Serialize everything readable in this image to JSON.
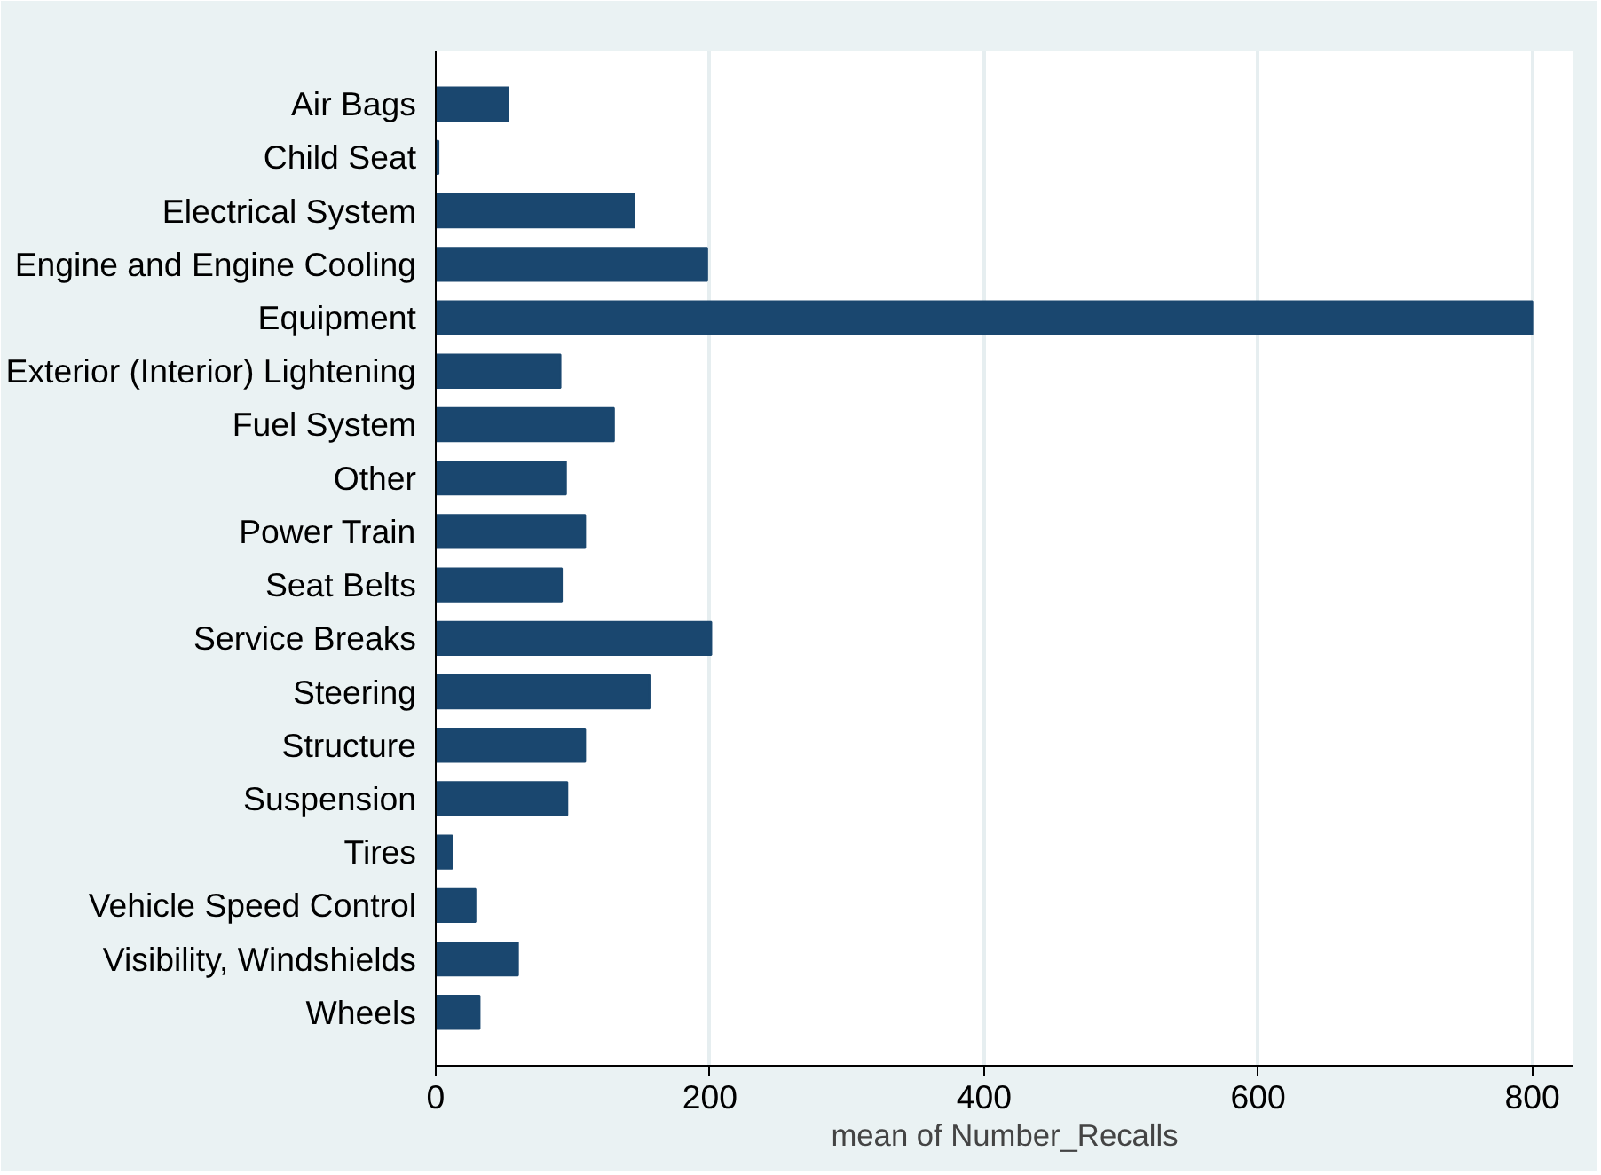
{
  "chart_data": {
    "type": "bar",
    "orientation": "horizontal",
    "xlabel": "mean of Number_Recalls",
    "categories": [
      "Air Bags",
      "Child Seat",
      "Electrical System",
      "Engine and Engine Cooling",
      "Equipment",
      "Exterior (Interior) Lightening",
      "Fuel System",
      "Other",
      "Power Train",
      "Seat Belts",
      "Service Breaks",
      "Steering",
      "Structure",
      "Suspension",
      "Tires",
      "Vehicle Speed Control",
      "Visibility, Windshields",
      "Wheels"
    ],
    "values": [
      53,
      2,
      145,
      198,
      800,
      91,
      130,
      95,
      109,
      92,
      201,
      156,
      109,
      96,
      12,
      29,
      60,
      32
    ],
    "color": "#1a476f",
    "xlim": [
      0,
      830
    ],
    "xticks": [
      0,
      200,
      400,
      600,
      800
    ],
    "grid": "x"
  }
}
